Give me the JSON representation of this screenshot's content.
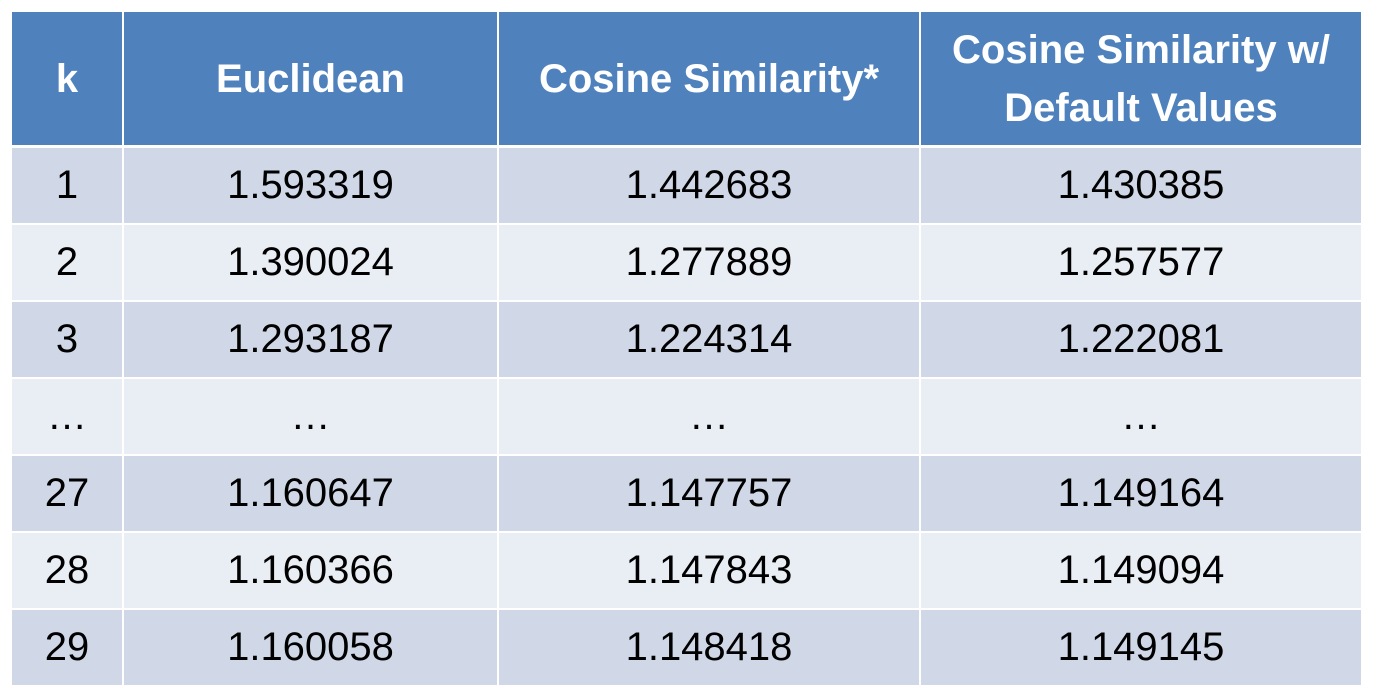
{
  "colors": {
    "header": "#4F81BD",
    "row_band_1": "#D0D8E8",
    "row_band_2": "#E9EDF4"
  },
  "chart_data": {
    "type": "table",
    "columns": [
      "k",
      "Euclidean",
      "Cosine Similarity*",
      "Cosine Similarity w/ Default Values"
    ],
    "rows": [
      [
        "1",
        "1.593319",
        "1.442683",
        "1.430385"
      ],
      [
        "2",
        "1.390024",
        "1.277889",
        "1.257577"
      ],
      [
        "3",
        "1.293187",
        "1.224314",
        "1.222081"
      ],
      [
        "…",
        "…",
        "…",
        "…"
      ],
      [
        "27",
        "1.160647",
        "1.147757",
        "1.149164"
      ],
      [
        "28",
        "1.160366",
        "1.147843",
        "1.149094"
      ],
      [
        "29",
        "1.160058",
        "1.148418",
        "1.149145"
      ]
    ]
  }
}
